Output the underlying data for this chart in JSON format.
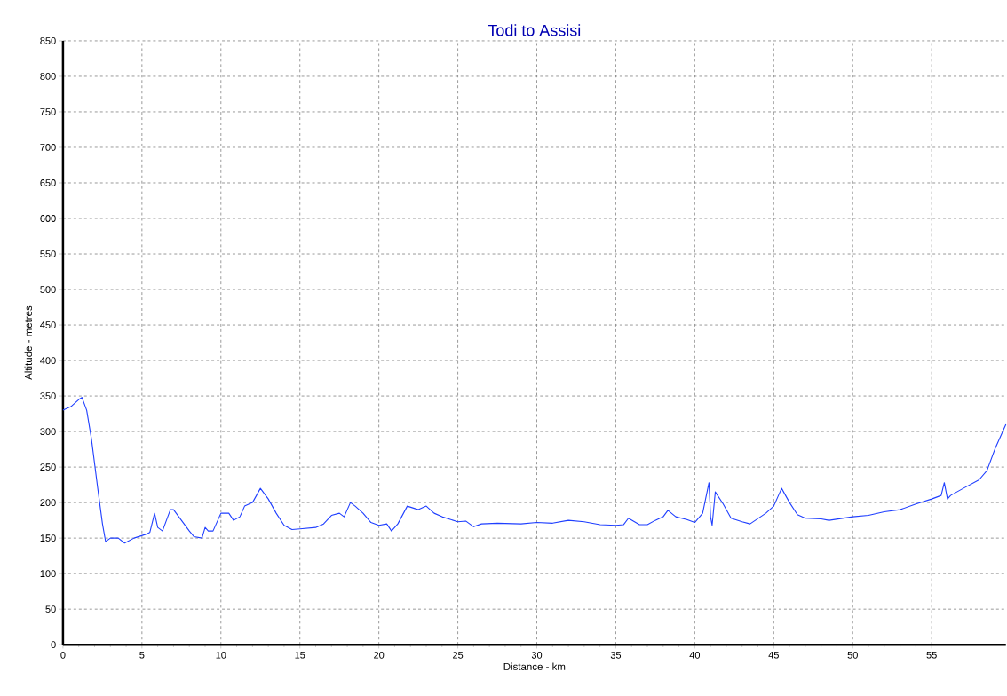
{
  "chart_data": {
    "type": "line",
    "title": "Todi to Assisi",
    "xlabel": "Distance - km",
    "ylabel": "Altitude - metres",
    "xlim": [
      0,
      59.7
    ],
    "ylim": [
      0,
      850
    ],
    "xticks": [
      0,
      5,
      10,
      15,
      20,
      25,
      30,
      35,
      40,
      45,
      50,
      55
    ],
    "yticks": [
      0,
      50,
      100,
      150,
      200,
      250,
      300,
      350,
      400,
      450,
      500,
      550,
      600,
      650,
      700,
      750,
      800,
      850
    ],
    "grid": true,
    "marker": "none",
    "line_style": "solid",
    "series": [
      {
        "color": "#1f3fff",
        "x": [
          0,
          0.5,
          1,
          1.2,
          1.5,
          1.8,
          2.2,
          2.5,
          2.7,
          3,
          3.5,
          3.9,
          4.5,
          5.2,
          5.5,
          5.8,
          6,
          6.3,
          6.8,
          7,
          7.5,
          8,
          8.3,
          8.8,
          9,
          9.2,
          9.5,
          10,
          10.5,
          10.8,
          11.2,
          11.5,
          12,
          12.5,
          13,
          13.5,
          14,
          14.5,
          15,
          16,
          16.5,
          17,
          17.5,
          17.8,
          18.2,
          18.5,
          19,
          19.5,
          20,
          20.5,
          20.8,
          21.2,
          21.8,
          22.5,
          23,
          23.5,
          24,
          25,
          25.5,
          26,
          26.5,
          27.5,
          29,
          30,
          31,
          32,
          33,
          34,
          35,
          35.5,
          35.8,
          36.5,
          37,
          37.5,
          38,
          38.3,
          38.8,
          39.5,
          40,
          40.5,
          40.9,
          41,
          41.1,
          41.3,
          41.8,
          42.3,
          43,
          43.5,
          44.5,
          45,
          45.5,
          46,
          46.5,
          47,
          48,
          48.5,
          50,
          51,
          52,
          53,
          54,
          55,
          55.6,
          55.8,
          56,
          56.2,
          57,
          58,
          58.5,
          59,
          59.7
        ],
        "values": [
          330,
          335,
          345,
          348,
          330,
          290,
          220,
          170,
          145,
          150,
          150,
          143,
          150,
          155,
          158,
          185,
          165,
          160,
          190,
          190,
          175,
          160,
          152,
          150,
          165,
          160,
          160,
          185,
          185,
          175,
          180,
          195,
          200,
          220,
          205,
          185,
          168,
          162,
          163,
          165,
          170,
          182,
          185,
          180,
          200,
          195,
          185,
          172,
          168,
          170,
          160,
          170,
          195,
          190,
          195,
          185,
          180,
          173,
          174,
          166,
          170,
          171,
          170,
          172,
          171,
          175,
          173,
          169,
          168,
          169,
          178,
          169,
          169,
          175,
          180,
          189,
          180,
          176,
          172,
          185,
          228,
          180,
          168,
          215,
          198,
          178,
          173,
          170,
          185,
          195,
          220,
          200,
          183,
          178,
          177,
          175,
          180,
          182,
          187,
          190,
          198,
          205,
          210,
          228,
          205,
          210,
          220,
          232,
          245,
          275,
          310
        ]
      }
    ]
  }
}
